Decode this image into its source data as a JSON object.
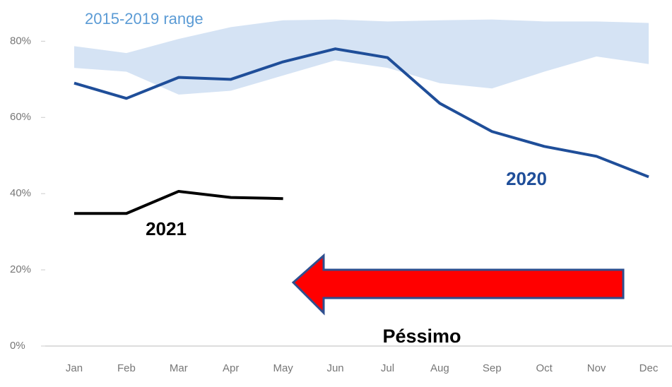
{
  "chart_data": {
    "type": "line",
    "categories": [
      "Jan",
      "Feb",
      "Mar",
      "Apr",
      "May",
      "Jun",
      "Jul",
      "Aug",
      "Sep",
      "Oct",
      "Nov",
      "Dec"
    ],
    "range": {
      "name": "2015-2019 range",
      "color": "#d5e3f4",
      "high": [
        78.7,
        76.9,
        80.6,
        83.7,
        85.5,
        85.7,
        85.2,
        85.5,
        85.7,
        85.2,
        85.2,
        84.8
      ],
      "low": [
        73,
        72,
        66,
        67,
        71,
        75,
        73,
        69,
        67.6,
        72,
        76,
        74
      ]
    },
    "series": [
      {
        "name": "2020",
        "color": "#1f4e99",
        "values": [
          69,
          65,
          70.5,
          70,
          74.6,
          78,
          75.7,
          63.7,
          56.3,
          52.4,
          49.8,
          44.4
        ]
      },
      {
        "name": "2021",
        "color": "#000000",
        "values": [
          34.8,
          34.8,
          40.6,
          39,
          38.7,
          null,
          null,
          null,
          null,
          null,
          null,
          null
        ]
      }
    ],
    "ylim": [
      0,
      86
    ],
    "yticks": [
      {
        "value": 0,
        "label": "0%"
      },
      {
        "value": 20,
        "label": "20%"
      },
      {
        "value": 40,
        "label": "40%"
      },
      {
        "value": 60,
        "label": "60%"
      },
      {
        "value": 80,
        "label": "80%"
      }
    ],
    "annotations": [
      "Péssimo"
    ]
  }
}
